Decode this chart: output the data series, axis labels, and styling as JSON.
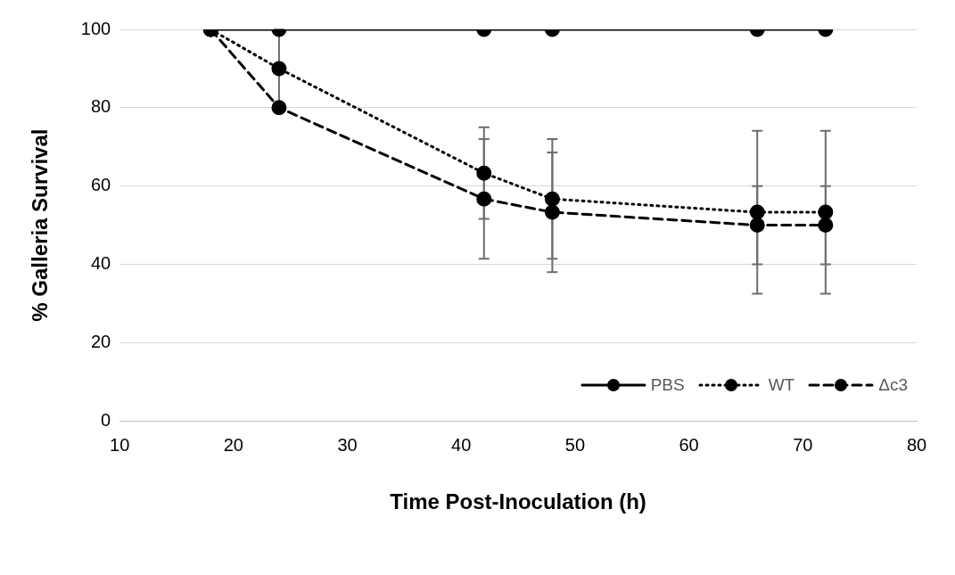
{
  "chart_data": {
    "type": "line",
    "xlabel": "Time Post-Inoculation (h)",
    "ylabel": "% Galleria Survival",
    "x": [
      18,
      24,
      42,
      48,
      66,
      72
    ],
    "xlim": [
      10,
      80
    ],
    "xticks": [
      10,
      20,
      30,
      40,
      50,
      60,
      70,
      80
    ],
    "ylim": [
      0,
      100
    ],
    "yticks": [
      0,
      20,
      40,
      60,
      80,
      100
    ],
    "grid": "y",
    "legend": "bottom right",
    "marker": "circle",
    "series": [
      {
        "name": "PBS",
        "color": "#000000",
        "line_style": "solid",
        "values": [
          100,
          100,
          100,
          100,
          100,
          100
        ]
      },
      {
        "name": "WT",
        "color": "#000000",
        "line_style": "dotted",
        "values": [
          100,
          90,
          63.3,
          56.7,
          53.3,
          53.3
        ],
        "errors": [
          null,
          10,
          11.7,
          15.3,
          20.8,
          20.8
        ]
      },
      {
        "name": "Δc3",
        "color": "#000000",
        "line_style": "dashed",
        "values": [
          100,
          80,
          56.7,
          53.3,
          50,
          50
        ],
        "errors": [
          null,
          null,
          15.3,
          15.3,
          10,
          10
        ]
      }
    ]
  }
}
